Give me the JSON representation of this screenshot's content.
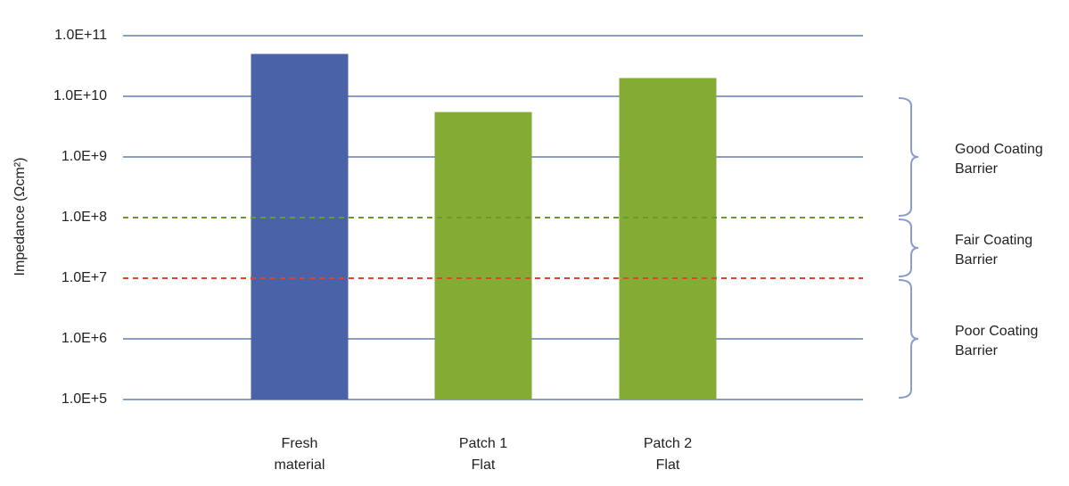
{
  "chart_data": {
    "type": "bar",
    "scale": "log10",
    "ylabel": "Impedance (Ωcm²)",
    "ylim": [
      100000,
      100000000000
    ],
    "yticks": [
      {
        "value": 100000,
        "label": "1.0E+5"
      },
      {
        "value": 1000000,
        "label": "1.0E+6"
      },
      {
        "value": 10000000,
        "label": "1.0E+7"
      },
      {
        "value": 100000000,
        "label": "1.0E+8"
      },
      {
        "value": 1000000000,
        "label": "1.0E+9"
      },
      {
        "value": 10000000000,
        "label": "1.0E+10"
      },
      {
        "value": 100000000000,
        "label": "1.0E+11"
      }
    ],
    "categories": [
      {
        "lines": [
          "Fresh",
          "material"
        ]
      },
      {
        "lines": [
          "Patch 1",
          "Flat"
        ]
      },
      {
        "lines": [
          "Patch 2",
          "Flat"
        ]
      }
    ],
    "values": [
      50000000000,
      5500000000,
      20000000000
    ],
    "bar_colors": [
      "#4a63a8",
      "#84ab33",
      "#84ab33"
    ],
    "grid": true,
    "gridline_color": "#8c9ccb",
    "reference_lines": [
      {
        "value": 100000000,
        "color": "#6a9b2e",
        "style": "dashed"
      },
      {
        "value": 10000000,
        "color": "#e0452b",
        "style": "dashed"
      }
    ],
    "bands": [
      {
        "lines": [
          "Good Coating",
          "Barrier"
        ],
        "from": 100000000,
        "to": 10000000000
      },
      {
        "lines": [
          "Fair Coating",
          "Barrier"
        ],
        "from": 10000000,
        "to": 100000000
      },
      {
        "lines": [
          "Poor Coating",
          "Barrier"
        ],
        "from": 100000,
        "to": 10000000
      }
    ],
    "brace_color": "#8c9ccb"
  }
}
